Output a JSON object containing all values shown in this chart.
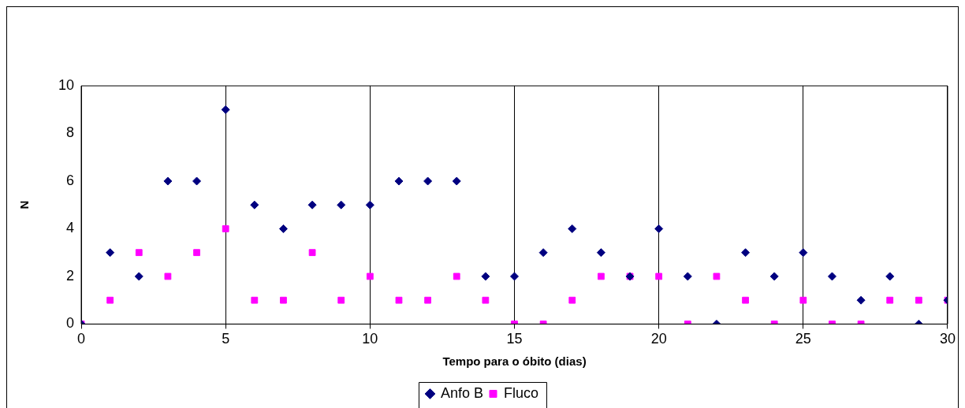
{
  "chart_data": {
    "type": "scatter",
    "xlabel": "Tempo para o óbito (dias)",
    "ylabel": "N",
    "x": [
      0,
      1,
      2,
      3,
      4,
      5,
      6,
      7,
      8,
      9,
      10,
      11,
      12,
      13,
      14,
      15,
      16,
      17,
      18,
      19,
      20,
      21,
      22,
      23,
      24,
      25,
      26,
      27,
      28,
      29,
      30
    ],
    "series": [
      {
        "name": "Anfo B",
        "color": "#000080",
        "marker": "diamond",
        "values": [
          0,
          3,
          2,
          6,
          6,
          9,
          5,
          4,
          5,
          5,
          5,
          6,
          6,
          6,
          2,
          2,
          3,
          4,
          3,
          2,
          4,
          2,
          0,
          3,
          2,
          3,
          2,
          1,
          2,
          0,
          1
        ]
      },
      {
        "name": "Fluco",
        "color": "#ff00ff",
        "marker": "square",
        "values": [
          0,
          1,
          3,
          2,
          3,
          4,
          1,
          1,
          3,
          1,
          2,
          1,
          1,
          2,
          1,
          0,
          0,
          1,
          2,
          2,
          2,
          0,
          2,
          1,
          0,
          1,
          0,
          0,
          1,
          1,
          1
        ]
      }
    ],
    "xlim": [
      0,
      30
    ],
    "xticks": [
      0,
      5,
      10,
      15,
      20,
      25,
      30
    ],
    "ylim": [
      0,
      10
    ],
    "yticks": [
      0,
      2,
      4,
      6,
      8,
      10
    ],
    "grid": "x",
    "legend": "bottom"
  }
}
